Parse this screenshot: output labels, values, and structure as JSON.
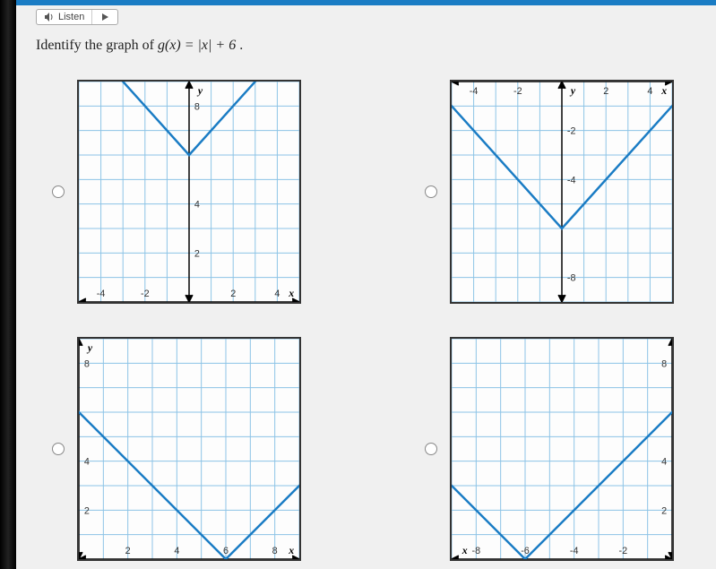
{
  "audio": {
    "listen_label": "Listen"
  },
  "question": {
    "prefix": "Identify the graph of ",
    "fn": "g(x) = |x| + 6",
    "suffix": "."
  },
  "gridstyle": {
    "grid_color": "#8cc3e6",
    "axis_color": "#000000",
    "line_color": "#1a7cc4",
    "bg_color": "#fdfdfd"
  },
  "graphs": {
    "a": {
      "x_axis_pos": "bottom",
      "y_axis_pos": "center",
      "x_range": [
        -5,
        5
      ],
      "y_range": [
        0,
        9
      ],
      "x_ticks": [
        {
          "v": -4,
          "l": "-4"
        },
        {
          "v": -2,
          "l": "-2"
        },
        {
          "v": 2,
          "l": "2"
        },
        {
          "v": 4,
          "l": "4"
        }
      ],
      "y_ticks": [
        {
          "v": 2,
          "l": "2"
        },
        {
          "v": 4,
          "l": "4"
        },
        {
          "v": 8,
          "l": "8"
        }
      ],
      "x_label": "x",
      "y_label": "y",
      "vertex": [
        0,
        6
      ],
      "opens": "up"
    },
    "b": {
      "x_axis_pos": "top",
      "y_axis_pos": "center",
      "x_range": [
        -5,
        5
      ],
      "y_range": [
        -9,
        0
      ],
      "x_ticks": [
        {
          "v": -4,
          "l": "-4"
        },
        {
          "v": -2,
          "l": "-2"
        },
        {
          "v": 2,
          "l": "2"
        },
        {
          "v": 4,
          "l": "4"
        }
      ],
      "y_ticks": [
        {
          "v": -2,
          "l": "-2"
        },
        {
          "v": -4,
          "l": "-4"
        },
        {
          "v": -8,
          "l": "-8"
        }
      ],
      "x_label": "x",
      "y_label": "y",
      "vertex": [
        0,
        -6
      ],
      "opens": "up"
    },
    "c": {
      "x_axis_pos": "bottom",
      "y_axis_pos": "left",
      "x_range": [
        0,
        9
      ],
      "y_range": [
        0,
        9
      ],
      "x_ticks": [
        {
          "v": 2,
          "l": "2"
        },
        {
          "v": 4,
          "l": "4"
        },
        {
          "v": 6,
          "l": "6"
        },
        {
          "v": 8,
          "l": "8"
        }
      ],
      "y_ticks": [
        {
          "v": 2,
          "l": "2"
        },
        {
          "v": 4,
          "l": "4"
        },
        {
          "v": 8,
          "l": "8"
        }
      ],
      "x_label": "x",
      "y_label": "y",
      "vertex": [
        6,
        0
      ],
      "opens": "up"
    },
    "d": {
      "x_axis_pos": "bottom",
      "y_axis_pos": "right",
      "x_range": [
        -9,
        0
      ],
      "y_range": [
        0,
        9
      ],
      "x_ticks": [
        {
          "v": -8,
          "l": "-8"
        },
        {
          "v": -6,
          "l": "-6"
        },
        {
          "v": -4,
          "l": "-4"
        },
        {
          "v": -2,
          "l": "-2"
        }
      ],
      "y_ticks": [
        {
          "v": 2,
          "l": "2"
        },
        {
          "v": 4,
          "l": "4"
        },
        {
          "v": 8,
          "l": "8"
        }
      ],
      "x_label": "x",
      "y_label": "y",
      "vertex": [
        -6,
        0
      ],
      "opens": "up"
    }
  }
}
